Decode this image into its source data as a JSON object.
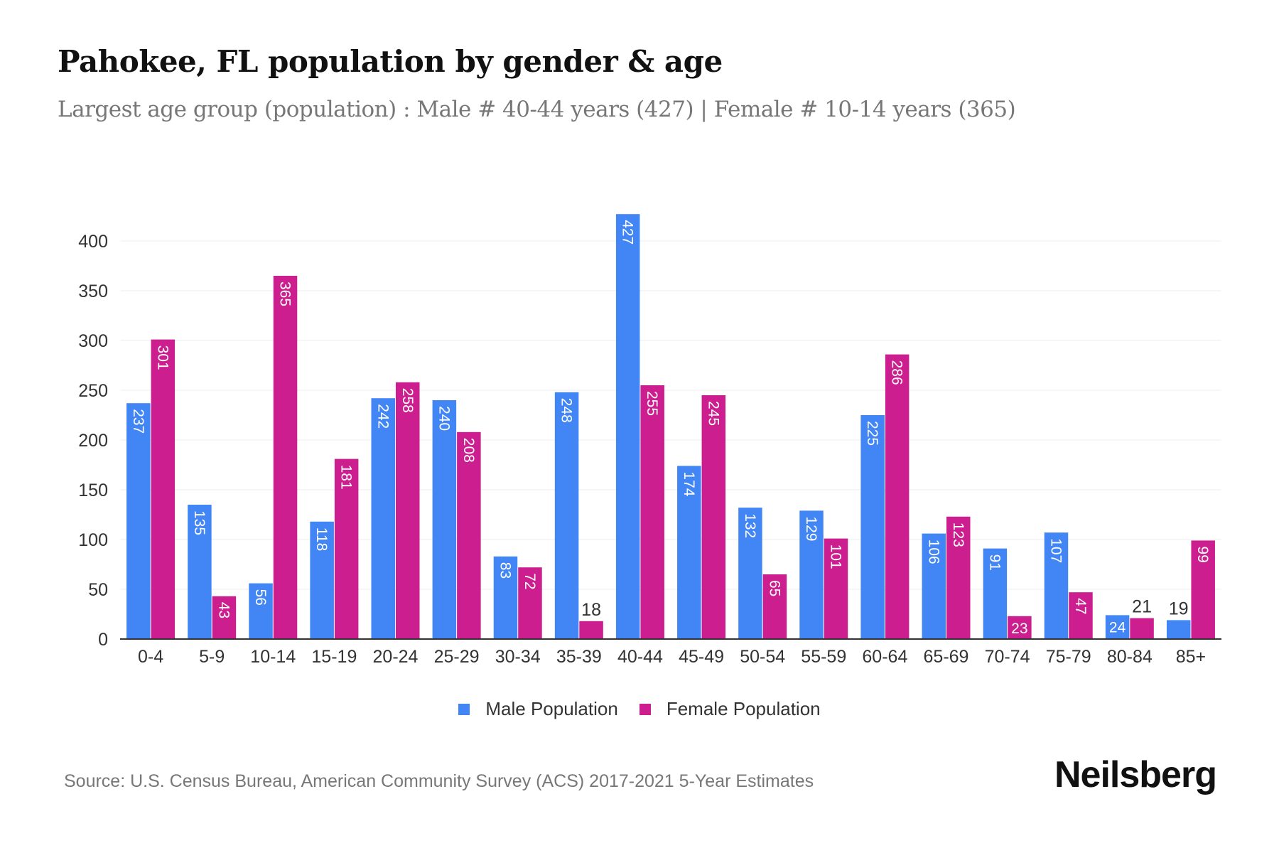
{
  "title": "Pahokee, FL population by gender & age",
  "subtitle": "Largest age group (population) : Male # 40-44 years (427) | Female # 10-14 years (365)",
  "source": "Source: U.S. Census Bureau, American Community Survey (ACS) 2017-2021 5-Year Estimates",
  "logo": "Neilsberg",
  "colors": {
    "male": "#4285F4",
    "female": "#CC1E8F"
  },
  "chart_data": {
    "type": "bar",
    "categories": [
      "0-4",
      "5-9",
      "10-14",
      "15-19",
      "20-24",
      "25-29",
      "30-34",
      "35-39",
      "40-44",
      "45-49",
      "50-54",
      "55-59",
      "60-64",
      "65-69",
      "70-74",
      "75-79",
      "80-84",
      "85+"
    ],
    "series": [
      {
        "name": "Male Population",
        "values": [
          237,
          135,
          56,
          118,
          242,
          240,
          83,
          248,
          427,
          174,
          132,
          129,
          225,
          106,
          91,
          107,
          24,
          19
        ]
      },
      {
        "name": "Female Population",
        "values": [
          301,
          43,
          365,
          181,
          258,
          208,
          72,
          18,
          255,
          245,
          65,
          101,
          286,
          123,
          23,
          47,
          21,
          99
        ]
      }
    ],
    "yticks": [
      0,
      50,
      100,
      150,
      200,
      250,
      300,
      350,
      400
    ],
    "ylim": [
      0,
      427
    ],
    "grid": true,
    "legend": "bottom"
  }
}
